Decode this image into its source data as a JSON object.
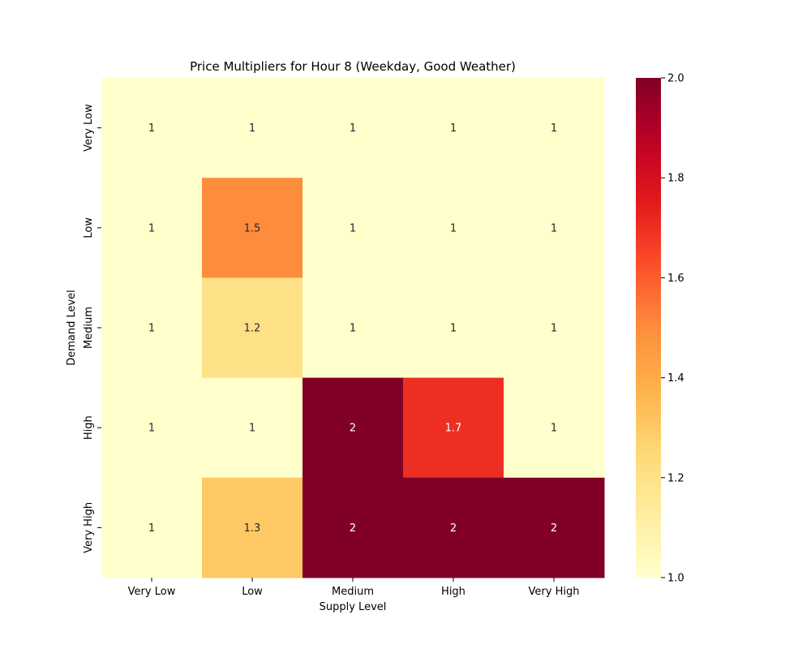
{
  "chart_data": {
    "type": "heatmap",
    "title": "Price Multipliers for Hour 8 (Weekday, Good Weather)",
    "xlabel": "Supply Level",
    "ylabel": "Demand Level",
    "x_categories": [
      "Very Low",
      "Low",
      "Medium",
      "High",
      "Very High"
    ],
    "y_categories": [
      "Very Low",
      "Low",
      "Medium",
      "High",
      "Very High"
    ],
    "values": [
      [
        1,
        1,
        1,
        1,
        1
      ],
      [
        1,
        1.5,
        1,
        1,
        1
      ],
      [
        1,
        1.2,
        1,
        1,
        1
      ],
      [
        1,
        1,
        2,
        1.7,
        1
      ],
      [
        1,
        1.3,
        2,
        2,
        2
      ]
    ],
    "colormap": "YlOrRd",
    "vmin": 1.0,
    "vmax": 2.0,
    "colorbar_ticks": [
      "1.0",
      "1.2",
      "1.4",
      "1.6",
      "1.8",
      "2.0"
    ]
  }
}
